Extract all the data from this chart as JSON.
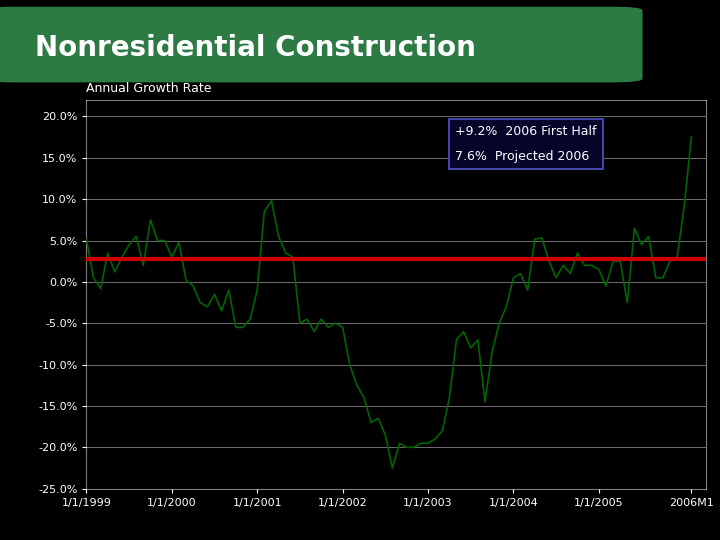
{
  "title": "Nonresidential Construction",
  "subtitle": "Annual Growth Rate",
  "title_bg": "#2d7a45",
  "background_color": "#000000",
  "plot_bg": "#000000",
  "line_color": "#006400",
  "red_line_color": "#cc0000",
  "legend_line1": "+9.2%  2006 First Half",
  "legend_line2": "7.6%  Projected 2006",
  "legend_bg": "#05052a",
  "legend_border": "#4444aa",
  "ylim": [
    -25,
    22
  ],
  "yticks": [
    -25,
    -20,
    -15,
    -10,
    -5,
    0,
    5,
    10,
    15,
    20
  ],
  "grid_color": "#ffffff",
  "tick_color": "#ffffff",
  "text_color": "#ffffff",
  "red_line_y": 2.8,
  "dates": [
    1999.0,
    1999.083,
    1999.167,
    1999.25,
    1999.333,
    1999.417,
    1999.5,
    1999.583,
    1999.667,
    1999.75,
    1999.833,
    1999.917,
    2000.0,
    2000.083,
    2000.167,
    2000.25,
    2000.333,
    2000.417,
    2000.5,
    2000.583,
    2000.667,
    2000.75,
    2000.833,
    2000.917,
    2001.0,
    2001.083,
    2001.167,
    2001.25,
    2001.333,
    2001.417,
    2001.5,
    2001.583,
    2001.667,
    2001.75,
    2001.833,
    2001.917,
    2002.0,
    2002.083,
    2002.167,
    2002.25,
    2002.333,
    2002.417,
    2002.5,
    2002.583,
    2002.667,
    2002.75,
    2002.833,
    2002.917,
    2003.0,
    2003.083,
    2003.167,
    2003.25,
    2003.333,
    2003.417,
    2003.5,
    2003.583,
    2003.667,
    2003.75,
    2003.833,
    2003.917,
    2004.0,
    2004.083,
    2004.167,
    2004.25,
    2004.333,
    2004.417,
    2004.5,
    2004.583,
    2004.667,
    2004.75,
    2004.833,
    2004.917,
    2005.0,
    2005.083,
    2005.167,
    2005.25,
    2005.333,
    2005.417,
    2005.5,
    2005.583,
    2005.667,
    2005.75,
    2005.833,
    2005.917,
    2006.0,
    2006.083
  ],
  "values": [
    5.2,
    0.5,
    -0.8,
    3.5,
    1.2,
    3.0,
    4.5,
    5.5,
    2.0,
    7.5,
    5.0,
    5.0,
    3.0,
    4.8,
    0.2,
    -0.5,
    -2.5,
    -3.0,
    -1.5,
    -3.5,
    -1.0,
    -5.5,
    -5.5,
    -4.5,
    -1.0,
    8.5,
    9.8,
    5.5,
    3.5,
    3.0,
    -5.0,
    -4.5,
    -6.0,
    -4.5,
    -5.5,
    -5.0,
    -5.5,
    -10.0,
    -12.5,
    -14.0,
    -17.0,
    -16.5,
    -18.5,
    -22.5,
    -19.5,
    -20.0,
    -20.0,
    -19.5,
    -19.5,
    -19.0,
    -18.0,
    -14.0,
    -7.0,
    -6.0,
    -8.0,
    -7.0,
    -14.5,
    -8.5,
    -5.0,
    -3.0,
    0.5,
    1.0,
    -1.0,
    5.2,
    5.3,
    2.5,
    0.5,
    2.0,
    1.0,
    3.5,
    2.0,
    2.0,
    1.5,
    -0.5,
    2.5,
    2.5,
    -2.5,
    6.5,
    4.5,
    5.5,
    0.5,
    0.5,
    2.5,
    3.0,
    9.2,
    17.5
  ],
  "xtick_dates": [
    1999.0,
    2000.0,
    2001.0,
    2002.0,
    2003.0,
    2004.0,
    2005.0,
    2006.083
  ],
  "xtick_labels": [
    "1/1/1999",
    "1/1/2000",
    "1/1/2001",
    "1/1/2002",
    "1/1/2003",
    "1/1/2004",
    "1/1/2005",
    "2006M1"
  ]
}
